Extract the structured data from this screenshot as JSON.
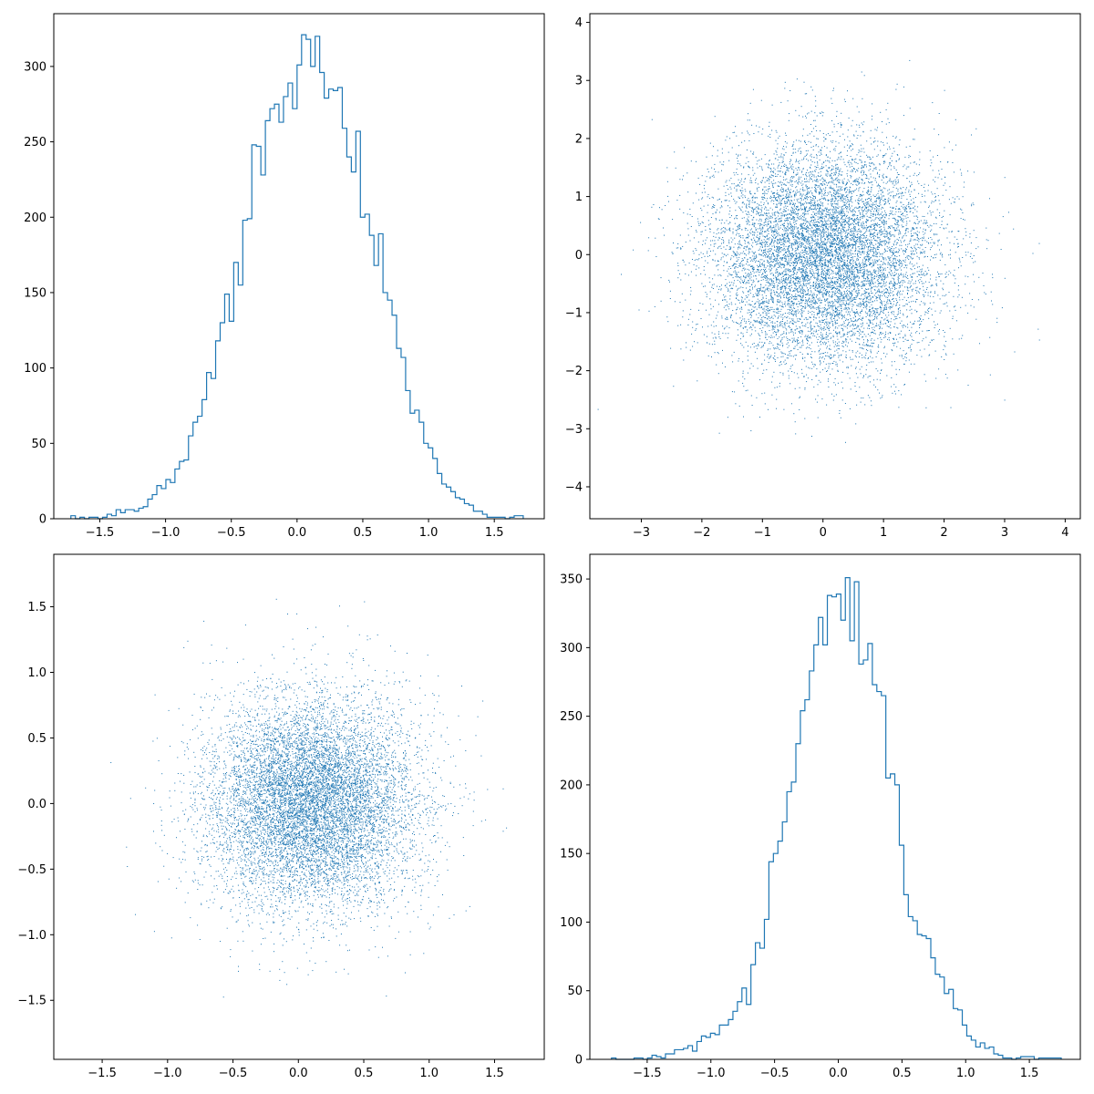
{
  "figure": {
    "colors": {
      "series": "#1f77b4",
      "axes": "#000000",
      "background": "#ffffff"
    },
    "layout": "2x2 grid"
  },
  "chart_data": [
    {
      "type": "histogram",
      "position": "top-left",
      "histtype": "step",
      "grid": false,
      "xlim": [
        -1.85,
        1.88
      ],
      "ylim": [
        0,
        335
      ],
      "xticks": [
        -1.5,
        -1.0,
        -0.5,
        0.0,
        0.5,
        1.0,
        1.5
      ],
      "yticks": [
        0,
        50,
        100,
        150,
        200,
        250,
        300
      ],
      "xtick_labels": [
        "−1.5",
        "−1.0",
        "−0.5",
        "0.0",
        "0.5",
        "1.0",
        "1.5"
      ],
      "ytick_labels": [
        "0",
        "50",
        "100",
        "150",
        "200",
        "250",
        "300"
      ],
      "bin_range": [
        -1.72,
        1.72
      ],
      "counts": [
        2,
        0,
        1,
        0,
        1,
        1,
        0,
        1,
        3,
        2,
        6,
        4,
        6,
        6,
        5,
        7,
        8,
        13,
        16,
        22,
        20,
        26,
        24,
        33,
        38,
        39,
        55,
        64,
        68,
        79,
        97,
        93,
        118,
        130,
        149,
        131,
        170,
        155,
        198,
        199,
        248,
        247,
        228,
        264,
        272,
        275,
        263,
        280,
        289,
        272,
        301,
        321,
        318,
        300,
        320,
        296,
        279,
        285,
        284,
        286,
        259,
        240,
        230,
        257,
        200,
        202,
        188,
        168,
        189,
        150,
        145,
        135,
        113,
        107,
        85,
        70,
        72,
        64,
        50,
        47,
        40,
        30,
        23,
        21,
        18,
        14,
        13,
        10,
        9,
        5,
        5,
        3,
        1,
        1,
        1,
        1,
        0,
        1,
        2,
        2
      ]
    },
    {
      "type": "scatter",
      "position": "top-right",
      "marker": "pixel",
      "grid": false,
      "n_points": 10000,
      "xlim": [
        -3.85,
        4.25
      ],
      "ylim": [
        -4.55,
        4.15
      ],
      "xticks": [
        -3,
        -2,
        -1,
        0,
        1,
        2,
        3,
        4
      ],
      "yticks": [
        -4,
        -3,
        -2,
        -1,
        0,
        1,
        2,
        3,
        4
      ],
      "xtick_labels": [
        "−3",
        "−2",
        "−1",
        "0",
        "1",
        "2",
        "3",
        "4"
      ],
      "ytick_labels": [
        "−4",
        "−3",
        "−2",
        "−1",
        "0",
        "1",
        "2",
        "3",
        "4"
      ],
      "distribution": {
        "x_mean": 0.0,
        "x_std": 0.95,
        "y_mean": 0.0,
        "y_std": 0.95
      }
    },
    {
      "type": "scatter",
      "position": "bottom-left",
      "marker": "pixel",
      "grid": false,
      "n_points": 10000,
      "xlim": [
        -1.87,
        1.88
      ],
      "ylim": [
        -1.95,
        1.9
      ],
      "xticks": [
        -1.5,
        -1.0,
        -0.5,
        0.0,
        0.5,
        1.0,
        1.5
      ],
      "yticks": [
        -1.5,
        -1.0,
        -0.5,
        0.0,
        0.5,
        1.0,
        1.5
      ],
      "xtick_labels": [
        "−1.5",
        "−1.0",
        "−0.5",
        "0.0",
        "0.5",
        "1.0",
        "1.5"
      ],
      "ytick_labels": [
        "−1.5",
        "−1.0",
        "−0.5",
        "0.0",
        "0.5",
        "1.0",
        "1.5"
      ],
      "distribution": {
        "x_mean": 0.1,
        "x_std": 0.4,
        "y_mean": 0.0,
        "y_std": 0.4
      }
    },
    {
      "type": "histogram",
      "position": "bottom-right",
      "histtype": "step",
      "grid": false,
      "xlim": [
        -1.95,
        1.9
      ],
      "ylim": [
        0,
        368
      ],
      "xticks": [
        -1.5,
        -1.0,
        -0.5,
        0.0,
        0.5,
        1.0,
        1.5
      ],
      "yticks": [
        0,
        50,
        100,
        150,
        200,
        250,
        300,
        350
      ],
      "xtick_labels": [
        "−1.5",
        "−1.0",
        "−0.5",
        "0.0",
        "0.5",
        "1.0",
        "1.5"
      ],
      "ytick_labels": [
        "0",
        "50",
        "100",
        "150",
        "200",
        "250",
        "300",
        "350"
      ],
      "bin_range": [
        -1.78,
        1.75
      ],
      "counts": [
        1,
        0,
        0,
        0,
        0,
        1,
        1,
        0,
        1,
        3,
        2,
        1,
        4,
        4,
        7,
        7,
        8,
        10,
        6,
        13,
        17,
        16,
        19,
        18,
        25,
        25,
        29,
        35,
        42,
        52,
        40,
        69,
        85,
        81,
        102,
        144,
        150,
        159,
        173,
        195,
        202,
        230,
        254,
        262,
        283,
        302,
        322,
        302,
        338,
        337,
        339,
        320,
        351,
        305,
        348,
        288,
        291,
        303,
        273,
        268,
        265,
        205,
        208,
        200,
        156,
        120,
        104,
        101,
        91,
        90,
        88,
        74,
        62,
        60,
        48,
        51,
        37,
        36,
        25,
        17,
        14,
        9,
        12,
        8,
        9,
        4,
        3,
        1,
        1,
        0,
        1,
        2,
        2,
        2,
        0,
        1,
        1,
        1,
        1,
        1
      ]
    }
  ]
}
